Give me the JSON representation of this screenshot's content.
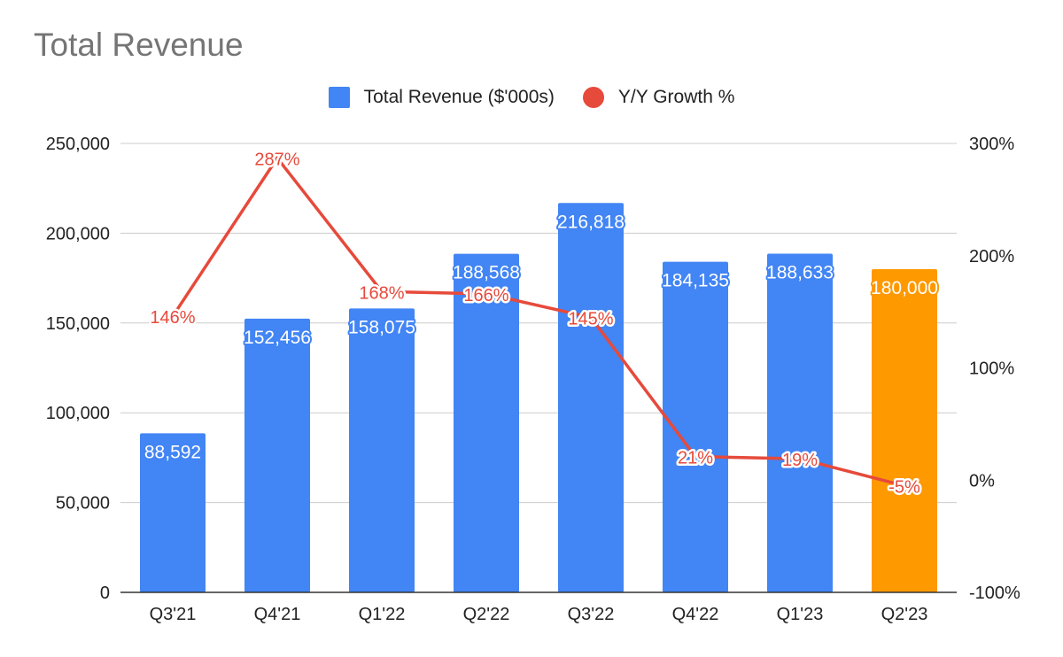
{
  "chart_data": {
    "type": "bar",
    "title": "Total Revenue",
    "categories": [
      "Q3'21",
      "Q4'21",
      "Q1'22",
      "Q2'22",
      "Q3'22",
      "Q4'22",
      "Q1'23",
      "Q2'23"
    ],
    "series": [
      {
        "name": "Total Revenue ($'000s)",
        "type": "bar",
        "axis": "left",
        "color": "#4285f4",
        "highlight_color": "#ff9900",
        "highlight_category": "Q2'23",
        "values": [
          88592,
          152456,
          158075,
          188568,
          216818,
          184135,
          188633,
          180000
        ],
        "labels": [
          "88,592",
          "152,456",
          "158,075",
          "188,568",
          "216,818",
          "184,135",
          "188,633",
          "180,000"
        ]
      },
      {
        "name": "Y/Y Growth %",
        "type": "line",
        "axis": "right",
        "color": "#e64a3b",
        "values": [
          146,
          287,
          168,
          166,
          145,
          21,
          19,
          -5
        ],
        "labels": [
          "146%",
          "287%",
          "168%",
          "166%",
          "145%",
          "21%",
          "19%",
          "-5%"
        ]
      }
    ],
    "y_left": {
      "ylim": [
        0,
        250000
      ],
      "ticks": [
        "0",
        "50,000",
        "100,000",
        "150,000",
        "200,000",
        "250,000"
      ],
      "tick_values": [
        0,
        50000,
        100000,
        150000,
        200000,
        250000
      ]
    },
    "y_right": {
      "ylim": [
        -100,
        300
      ],
      "ticks": [
        "-100%",
        "0%",
        "100%",
        "200%",
        "300%"
      ],
      "tick_values": [
        -100,
        0,
        100,
        200,
        300
      ]
    },
    "grid": true,
    "legend_position": "top"
  }
}
